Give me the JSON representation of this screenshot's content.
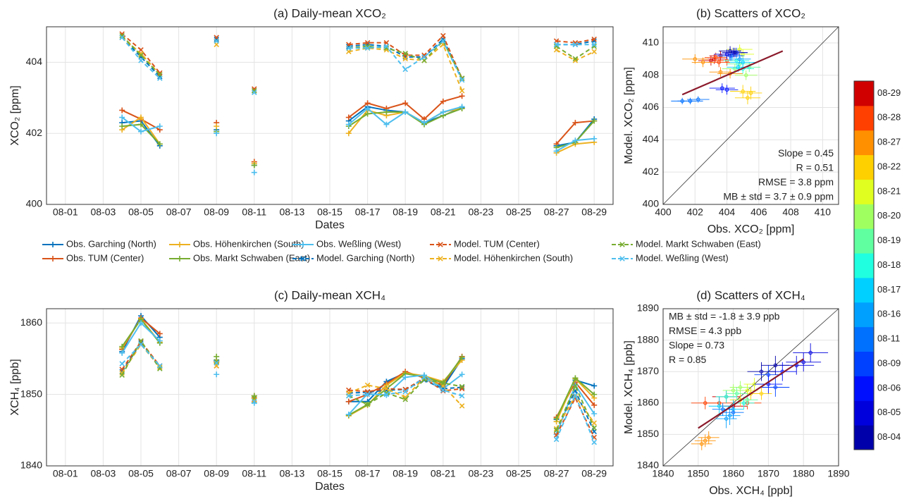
{
  "chart_data": [
    {
      "type": "line",
      "title": "(a) Daily-mean XCO₂",
      "xlabel": "Dates",
      "ylabel": "XCO₂ [ppm]",
      "x": [
        "08-04",
        "08-05",
        "08-06",
        "08-09",
        "08-11",
        "08-16",
        "08-17",
        "08-18",
        "08-19",
        "08-20",
        "08-21",
        "08-22",
        "08-27",
        "08-28",
        "08-29"
      ],
      "xlim": [
        "07-31",
        "08-30"
      ],
      "xticks": [
        "08-01",
        "08-03",
        "08-05",
        "08-07",
        "08-09",
        "08-11",
        "08-13",
        "08-15",
        "08-17",
        "08-19",
        "08-21",
        "08-23",
        "08-25",
        "08-27",
        "08-29"
      ],
      "ylim": [
        400,
        405
      ],
      "yticks": [
        400,
        402,
        404
      ],
      "grid": true,
      "series": [
        {
          "name": "Obs. Garching (North)",
          "color": "#0072bd",
          "line_style": "solid",
          "marker": "+",
          "values": [
            402.3,
            402.35,
            401.65,
            402.1,
            401.1,
            402.35,
            402.75,
            402.65,
            402.6,
            402.3,
            402.5,
            402.72,
            401.65,
            401.75,
            402.4
          ]
        },
        {
          "name": "Obs. TUM (Center)",
          "color": "#d95319",
          "line_style": "solid",
          "marker": "+",
          "values": [
            402.65,
            402.4,
            402.1,
            402.3,
            401.2,
            402.45,
            402.85,
            402.7,
            402.85,
            402.4,
            402.9,
            403.05,
            401.7,
            402.3,
            402.35
          ]
        },
        {
          "name": "Obs. Höhenkirchen (South)",
          "color": "#edb120",
          "line_style": "solid",
          "marker": "+",
          "values": [
            402.1,
            402.45,
            401.7,
            402.2,
            401.15,
            402.0,
            402.65,
            402.5,
            402.6,
            402.3,
            402.6,
            402.7,
            401.45,
            401.7,
            401.75
          ]
        },
        {
          "name": "Obs. Markt Schwaben (East)",
          "color": "#77ac30",
          "line_style": "solid",
          "marker": "+",
          "values": [
            402.2,
            402.25,
            401.7,
            402.05,
            401.1,
            402.2,
            402.55,
            402.6,
            402.6,
            402.25,
            402.5,
            402.7,
            401.6,
            401.75,
            402.35
          ]
        },
        {
          "name": "Obs. Weßling (West)",
          "color": "#4dbeee",
          "line_style": "solid",
          "marker": "+",
          "values": [
            402.45,
            402.05,
            402.2,
            402.0,
            400.9,
            402.25,
            402.7,
            402.25,
            402.6,
            402.3,
            402.6,
            402.75,
            401.5,
            401.8,
            401.85
          ]
        },
        {
          "name": "Model. Garching (North)",
          "color": "#0072bd",
          "line_style": "dashed",
          "marker": "x",
          "values": [
            404.7,
            404.15,
            403.6,
            404.65,
            403.2,
            404.45,
            404.5,
            404.45,
            404.15,
            404.15,
            404.65,
            403.55,
            404.5,
            404.5,
            404.6
          ]
        },
        {
          "name": "Model. TUM (Center)",
          "color": "#d95319",
          "line_style": "dashed",
          "marker": "x",
          "values": [
            404.8,
            404.35,
            403.7,
            404.7,
            403.25,
            404.5,
            404.55,
            404.55,
            404.2,
            404.2,
            404.75,
            403.55,
            404.6,
            404.55,
            404.65
          ]
        },
        {
          "name": "Model. Höhenkirchen (South)",
          "color": "#edb120",
          "line_style": "dashed",
          "marker": "x",
          "values": [
            404.7,
            404.25,
            403.65,
            404.5,
            403.2,
            404.3,
            404.4,
            404.35,
            404.1,
            404.05,
            404.5,
            403.2,
            404.35,
            404.05,
            404.3
          ]
        },
        {
          "name": "Model. Markt Schwaben (East)",
          "color": "#77ac30",
          "line_style": "dashed",
          "marker": "x",
          "values": [
            404.75,
            404.2,
            403.65,
            404.6,
            403.2,
            404.4,
            404.45,
            404.4,
            404.25,
            404.05,
            404.6,
            403.55,
            404.45,
            404.1,
            404.45
          ]
        },
        {
          "name": "Model. Weßling (West)",
          "color": "#4dbeee",
          "line_style": "dashed",
          "marker": "x",
          "values": [
            404.7,
            404.05,
            403.55,
            404.6,
            403.15,
            404.4,
            404.4,
            404.45,
            403.8,
            404.15,
            404.6,
            403.5,
            404.5,
            404.5,
            404.5
          ]
        }
      ]
    },
    {
      "type": "scatter",
      "title": "(b) Scatters of XCO₂",
      "xlabel": "Obs. XCO₂ [ppm]",
      "ylabel": "Model. XCO₂ [ppm]",
      "xlim": [
        400,
        411
      ],
      "ylim": [
        400,
        411
      ],
      "xticks": [
        400,
        402,
        404,
        406,
        408,
        410
      ],
      "yticks": [
        400,
        402,
        404,
        406,
        408,
        410
      ],
      "grid": true,
      "dates": [
        "08-29",
        "08-29",
        "08-29",
        "08-28",
        "08-28",
        "08-28",
        "08-27",
        "08-27",
        "08-27",
        "08-27",
        "08-22",
        "08-22",
        "08-22",
        "08-21",
        "08-21",
        "08-20",
        "08-20",
        "08-19",
        "08-19",
        "08-18",
        "08-18",
        "08-17",
        "08-17",
        "08-16",
        "08-16",
        "08-11",
        "08-11",
        "08-11",
        "08-09",
        "08-09",
        "08-06",
        "08-06",
        "08-05",
        "08-05",
        "08-04",
        "08-04"
      ],
      "x": [
        403.2,
        403.6,
        403.0,
        403.5,
        404.0,
        403.3,
        402.0,
        402.5,
        404.2,
        403.6,
        405.0,
        405.5,
        405.3,
        405.0,
        404.8,
        405.2,
        404.5,
        405.4,
        404.8,
        405.0,
        404.6,
        404.7,
        405.0,
        404.8,
        404.3,
        401.2,
        401.7,
        402.2,
        404.2,
        404.6,
        403.7,
        404.0,
        404.0,
        404.4,
        404.5,
        404.2
      ],
      "y": [
        409.0,
        409.2,
        408.9,
        408.8,
        408.9,
        409.1,
        409.0,
        408.8,
        408.1,
        408.2,
        407.0,
        406.9,
        406.6,
        409.3,
        409.6,
        408.0,
        408.4,
        408.5,
        408.7,
        408.4,
        408.9,
        408.5,
        408.8,
        409.0,
        409.2,
        406.4,
        406.4,
        406.5,
        409.2,
        409.4,
        407.2,
        407.1,
        409.3,
        409.4,
        409.4,
        409.5
      ],
      "xerr": [
        0.8,
        0.7,
        0.8,
        0.7,
        0.8,
        0.7,
        0.8,
        0.7,
        0.8,
        0.7,
        0.8,
        0.7,
        0.8,
        0.7,
        0.8,
        0.7,
        0.8,
        0.7,
        0.8,
        0.7,
        0.8,
        0.7,
        0.8,
        0.7,
        0.8,
        0.7,
        0.8,
        0.7,
        0.8,
        0.7,
        0.8,
        0.7,
        0.8,
        0.7,
        0.8,
        0.7
      ],
      "yerr": [
        0.3,
        0.3,
        0.3,
        0.3,
        0.3,
        0.3,
        0.3,
        0.3,
        0.3,
        0.3,
        0.4,
        0.4,
        0.4,
        0.3,
        0.3,
        0.3,
        0.3,
        0.3,
        0.3,
        0.3,
        0.3,
        0.3,
        0.3,
        0.3,
        0.3,
        0.2,
        0.2,
        0.2,
        0.3,
        0.3,
        0.3,
        0.3,
        0.3,
        0.3,
        0.3,
        0.3
      ],
      "fit_line": {
        "color": "#8b1a2b",
        "x": [
          401.2,
          407.5
        ],
        "y": [
          406.8,
          409.5
        ]
      },
      "annotations": [
        "Slope = 0.45",
        "R = 0.51",
        "RMSE = 3.8 ppm",
        "MB ± std = 3.7 ± 0.9 ppm"
      ],
      "annotation_corner": "bottom-right"
    },
    {
      "type": "line",
      "title": "(c) Daily-mean XCH₄",
      "xlabel": "Dates",
      "ylabel": "XCH₄ [ppb]",
      "x": [
        "08-04",
        "08-05",
        "08-06",
        "08-09",
        "08-11",
        "08-16",
        "08-17",
        "08-18",
        "08-19",
        "08-20",
        "08-21",
        "08-22",
        "08-27",
        "08-28",
        "08-29"
      ],
      "xlim": [
        "07-31",
        "08-30"
      ],
      "xticks": [
        "08-01",
        "08-03",
        "08-05",
        "08-07",
        "08-09",
        "08-11",
        "08-13",
        "08-15",
        "08-17",
        "08-19",
        "08-21",
        "08-23",
        "08-25",
        "08-27",
        "08-29"
      ],
      "ylim": [
        1840,
        1862
      ],
      "yticks": [
        1840,
        1850,
        1860
      ],
      "grid": true,
      "series": [
        {
          "color": "#0072bd",
          "line_style": "solid",
          "marker": "+",
          "values": [
            1856,
            1861,
            1858,
            1854.8,
            1849.5,
            1849,
            1849,
            1851.8,
            1853,
            1852.5,
            1851,
            1855,
            1846.5,
            1852,
            1851.2
          ]
        },
        {
          "color": "#d95319",
          "line_style": "solid",
          "marker": "+",
          "values": [
            1856.3,
            1860.7,
            1858.5,
            1854.6,
            1849.8,
            1849,
            1850,
            1851.5,
            1853.2,
            1852.3,
            1851.3,
            1855.3,
            1846.8,
            1851.7,
            1848.5
          ]
        },
        {
          "color": "#edb120",
          "line_style": "solid",
          "marker": "+",
          "values": [
            1856.5,
            1860.6,
            1857.3,
            1854.5,
            1849.5,
            1847,
            1848.5,
            1851.3,
            1853,
            1852.6,
            1851.8,
            1854.8,
            1846.2,
            1852.2,
            1849.5
          ]
        },
        {
          "color": "#77ac30",
          "line_style": "solid",
          "marker": "+",
          "values": [
            1856.7,
            1860.5,
            1857.2,
            1855.3,
            1849.8,
            1847.1,
            1848.6,
            1850.8,
            1852.9,
            1852.5,
            1851.6,
            1855.2,
            1846.6,
            1852.3,
            1850
          ]
        },
        {
          "color": "#4dbeee",
          "line_style": "solid",
          "marker": "+",
          "values": [
            1855.8,
            1860,
            1857.5,
            1852.8,
            1848.8,
            1847.2,
            1850.1,
            1849.9,
            1852.4,
            1852.7,
            1850.8,
            1852.8,
            1844.4,
            1851.3,
            1847.3
          ]
        },
        {
          "color": "#0072bd",
          "line_style": "dashed",
          "marker": "x",
          "values": [
            1853.2,
            1857.2,
            1854,
            1854.5,
            1849.2,
            1850.2,
            1850.3,
            1850.6,
            1850.7,
            1852,
            1850.8,
            1851,
            1845,
            1850.5,
            1844.8
          ]
        },
        {
          "color": "#d95319",
          "line_style": "dashed",
          "marker": "x",
          "values": [
            1853.5,
            1857.4,
            1854,
            1854,
            1849.3,
            1850.6,
            1850.4,
            1850.8,
            1850.7,
            1852.3,
            1850.5,
            1850.8,
            1844.3,
            1849.5,
            1844
          ]
        },
        {
          "color": "#edb120",
          "line_style": "dashed",
          "marker": "x",
          "values": [
            1853,
            1857,
            1853.8,
            1854,
            1849.2,
            1850.2,
            1851.3,
            1850.8,
            1849.6,
            1852.3,
            1851.2,
            1848.4,
            1845.2,
            1849.8,
            1846
          ]
        },
        {
          "color": "#77ac30",
          "line_style": "dashed",
          "marker": "x",
          "values": [
            1852.7,
            1857.5,
            1853.6,
            1854.6,
            1849.5,
            1849.8,
            1848.6,
            1850.2,
            1849.3,
            1852.1,
            1851.6,
            1851.1,
            1845,
            1851.2,
            1845.3
          ]
        },
        {
          "color": "#4dbeee",
          "line_style": "dashed",
          "marker": "x",
          "values": [
            1854.3,
            1857,
            1854,
            1854.4,
            1849,
            1849.8,
            1850,
            1850,
            1850.4,
            1852.4,
            1850.6,
            1849.8,
            1843.7,
            1849.9,
            1843.3
          ]
        }
      ]
    },
    {
      "type": "scatter",
      "title": "(d) Scatters of XCH₄",
      "xlabel": "Obs. XCH₄ [ppb]",
      "ylabel": "Model. XCH₄ [ppb]",
      "xlim": [
        1840,
        1890
      ],
      "ylim": [
        1840,
        1890
      ],
      "xticks": [
        1840,
        1850,
        1860,
        1870,
        1880,
        1890
      ],
      "yticks": [
        1840,
        1850,
        1860,
        1870,
        1880,
        1890
      ],
      "grid": true,
      "dates": [
        "08-27",
        "08-27",
        "08-27",
        "08-28",
        "08-28",
        "08-28",
        "08-29",
        "08-29",
        "08-22",
        "08-22",
        "08-22",
        "08-21",
        "08-21",
        "08-20",
        "08-20",
        "08-19",
        "08-19",
        "08-18",
        "08-18",
        "08-17",
        "08-17",
        "08-16",
        "08-16",
        "08-11",
        "08-11",
        "08-09",
        "08-09",
        "08-06",
        "08-06",
        "08-05",
        "08-05",
        "08-05",
        "08-04",
        "08-04"
      ],
      "x": [
        1852,
        1853,
        1851,
        1852,
        1856,
        1864,
        1858,
        1860,
        1868,
        1865,
        1862,
        1864,
        1866,
        1862,
        1860,
        1864,
        1861,
        1863,
        1858,
        1856,
        1860,
        1859,
        1858,
        1857,
        1860,
        1872,
        1870,
        1870,
        1874,
        1880,
        1878,
        1882,
        1868,
        1872
      ],
      "y": [
        1848,
        1849,
        1847,
        1860,
        1860,
        1860,
        1862,
        1859,
        1863,
        1863,
        1861,
        1864,
        1866,
        1865,
        1864,
        1861,
        1863,
        1860,
        1862,
        1859,
        1858,
        1856,
        1855,
        1858,
        1857,
        1865,
        1869,
        1866,
        1870,
        1873,
        1872,
        1876,
        1870,
        1872
      ],
      "xerr": [
        3,
        3,
        3,
        4,
        4,
        4,
        4,
        4,
        3,
        3,
        3,
        3,
        3,
        3,
        3,
        3,
        3,
        3,
        3,
        3,
        3,
        3,
        3,
        3,
        3,
        4,
        4,
        4,
        4,
        5,
        5,
        5,
        4,
        4
      ],
      "yerr": [
        2,
        2,
        2,
        2,
        2,
        2,
        2,
        2,
        2,
        2,
        2,
        2,
        2,
        2,
        2,
        2,
        2,
        2,
        2,
        3,
        3,
        3,
        3,
        2,
        2,
        3,
        3,
        3,
        3,
        3,
        3,
        3,
        3,
        3
      ],
      "fit_line": {
        "color": "#8b1a2b",
        "x": [
          1850,
          1880
        ],
        "y": [
          1852,
          1874
        ]
      },
      "annotations": [
        "MB ± std = -1.8 ± 3.9 ppb",
        "RMSE = 4.3 ppb",
        "Slope = 0.73",
        "R = 0.85"
      ],
      "annotation_corner": "top-left"
    }
  ],
  "colorbar": {
    "labels": [
      "08-04",
      "08-05",
      "08-06",
      "08-09",
      "08-11",
      "08-16",
      "08-17",
      "08-18",
      "08-19",
      "08-20",
      "08-21",
      "08-22",
      "08-27",
      "08-28",
      "08-29"
    ],
    "colors": [
      "#0000aa",
      "#0000dd",
      "#0010ff",
      "#0040ff",
      "#0070ff",
      "#00a0ff",
      "#00d0ff",
      "#20ffdf",
      "#60ff9f",
      "#a0ff60",
      "#e0ff20",
      "#ffd000",
      "#ff9000",
      "#ff4000",
      "#d00000"
    ]
  }
}
